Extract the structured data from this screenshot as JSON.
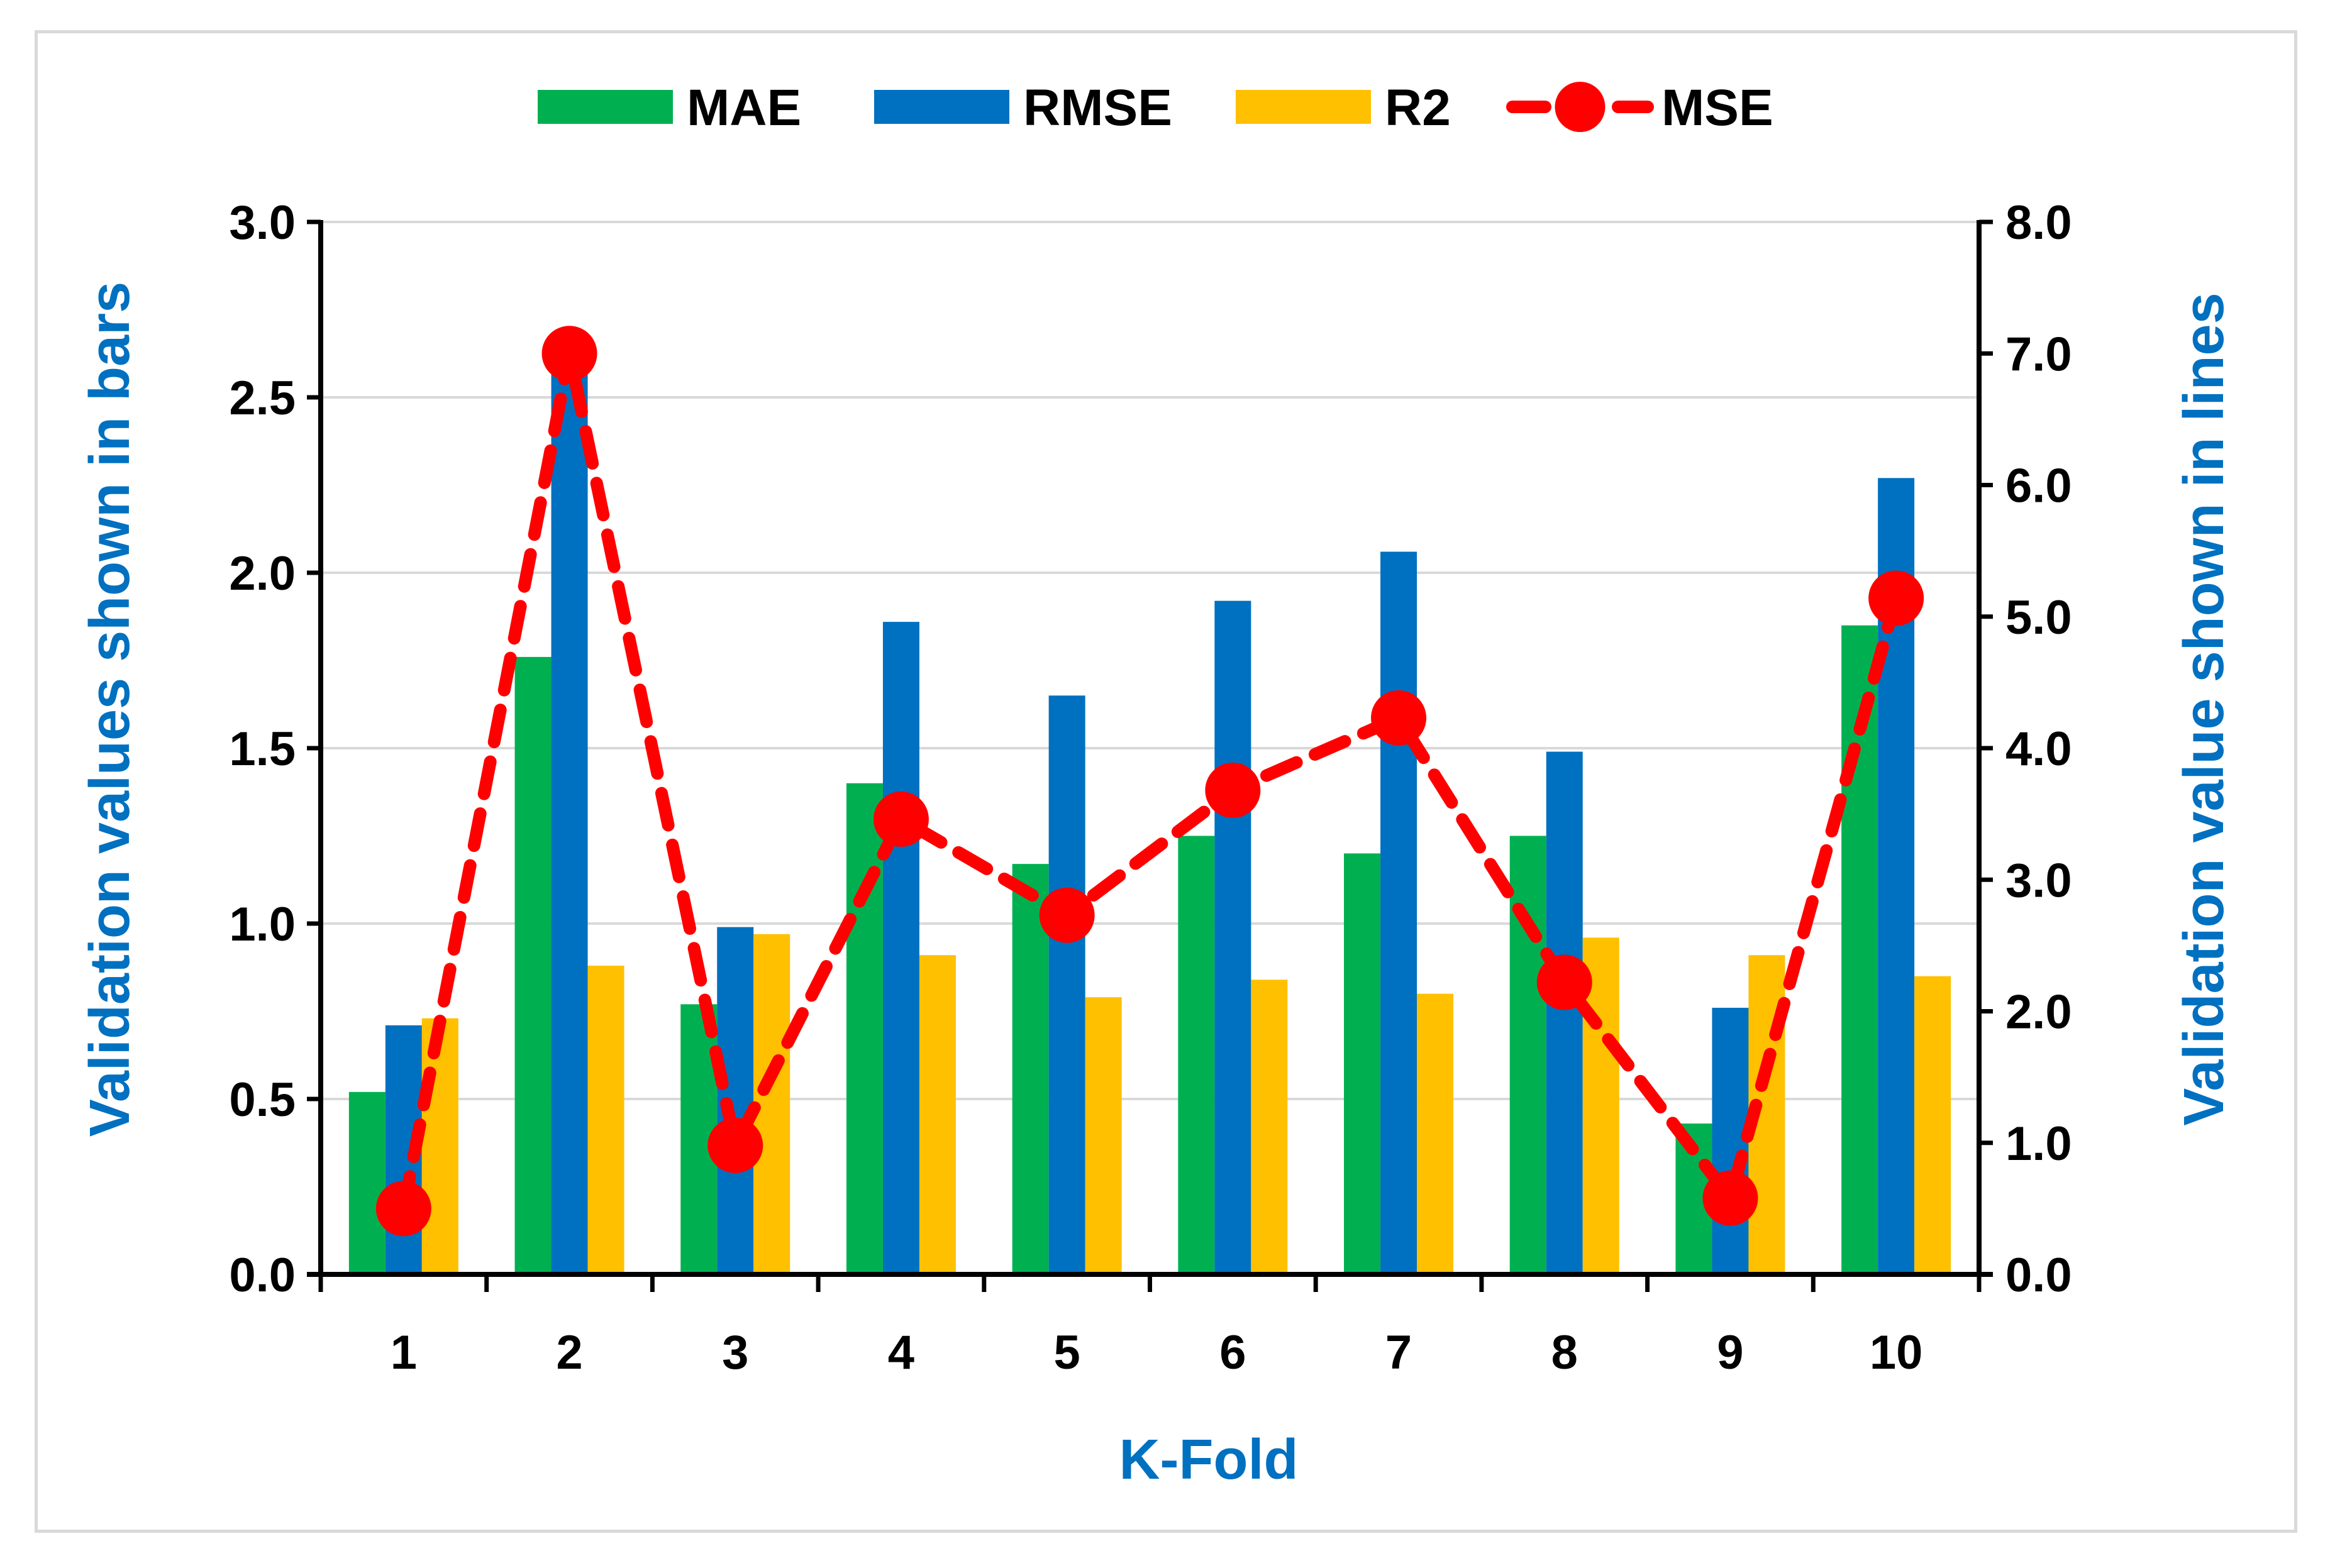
{
  "chart_data": {
    "type": "bar",
    "title": "",
    "categories": [
      "1",
      "2",
      "3",
      "4",
      "5",
      "6",
      "7",
      "8",
      "9",
      "10"
    ],
    "series": [
      {
        "name": "MAE",
        "type": "bar",
        "axis": "left",
        "color": "#00b050",
        "values": [
          0.52,
          1.76,
          0.77,
          1.4,
          1.17,
          1.25,
          1.2,
          1.25,
          0.43,
          1.85
        ]
      },
      {
        "name": "RMSE",
        "type": "bar",
        "axis": "left",
        "color": "#0070c0",
        "values": [
          0.71,
          2.6,
          0.99,
          1.86,
          1.65,
          1.92,
          2.06,
          1.49,
          0.76,
          2.27
        ]
      },
      {
        "name": "R2",
        "type": "bar",
        "axis": "left",
        "color": "#ffc000",
        "values": [
          0.73,
          0.88,
          0.97,
          0.91,
          0.79,
          0.84,
          0.8,
          0.96,
          0.91,
          0.85
        ]
      },
      {
        "name": "MSE",
        "type": "line",
        "axis": "right",
        "color": "#ff0000",
        "values": [
          0.5,
          7.0,
          0.98,
          3.46,
          2.73,
          3.68,
          4.23,
          2.22,
          0.58,
          5.14
        ]
      }
    ],
    "xlabel": "K-Fold",
    "ylabel": "Validation values shown in bars",
    "y2label": "Validation value shown in lines",
    "ylim": [
      0,
      3.0
    ],
    "y2lim": [
      0,
      8.0
    ],
    "yticks": [
      "0.0",
      "0.5",
      "1.0",
      "1.5",
      "2.0",
      "2.5",
      "3.0"
    ],
    "y2ticks": [
      "0.0",
      "1.0",
      "2.0",
      "3.0",
      "4.0",
      "5.0",
      "6.0",
      "7.0",
      "8.0"
    ],
    "grid": true,
    "legend_position": "top"
  }
}
